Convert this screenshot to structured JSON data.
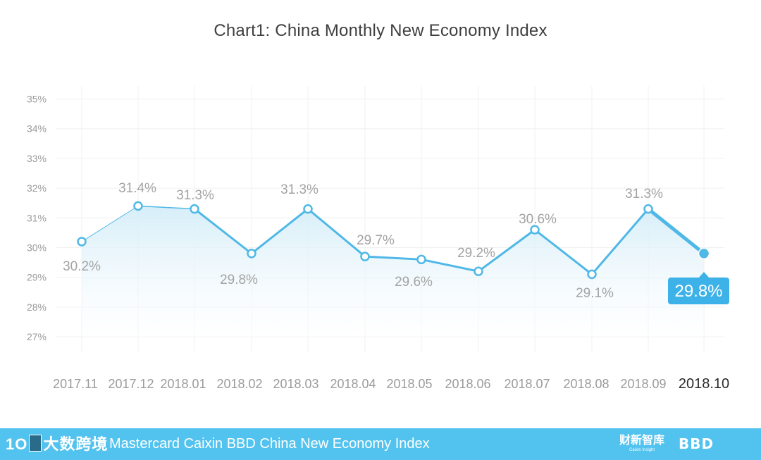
{
  "chart_data": {
    "type": "line",
    "title": "Chart1: China Monthly New Economy Index",
    "categories": [
      "2017.11",
      "2017.12",
      "2018.01",
      "2018.02",
      "2018.03",
      "2018.04",
      "2018.05",
      "2018.06",
      "2018.07",
      "2018.08",
      "2018.09",
      "2018.10"
    ],
    "values": [
      30.2,
      31.4,
      31.3,
      29.8,
      31.3,
      29.7,
      29.6,
      29.2,
      30.6,
      29.1,
      31.3,
      29.8
    ],
    "data_labels": [
      "30.2%",
      "31.4%",
      "31.3%",
      "29.8%",
      "31.3%",
      "29.7%",
      "29.6%",
      "29.2%",
      "30.6%",
      "29.1%",
      "31.3%",
      "29.8%"
    ],
    "y_ticks": [
      "27%",
      "28%",
      "29%",
      "30%",
      "31%",
      "32%",
      "33%",
      "34%",
      "35%"
    ],
    "ylim": [
      27,
      35
    ],
    "grid": true,
    "area_fill": true,
    "highlight_last": true,
    "colors": {
      "line": "#4fb8e6",
      "label_box": "#3db2e8",
      "grid": "#f0f0f0",
      "tick_text": "#9b9b9b",
      "label_text": "#a3a3a3"
    }
  },
  "footer": {
    "logo_left": "大数跨境",
    "logo_left_prefix": "1O",
    "title": "Mastercard Caixin BBD China New Economy Index",
    "logo_caixin": "财新智库",
    "logo_caixin_sub": "Caixin Insight",
    "logo_bbd": "BBD",
    "background": "#52c2ee"
  }
}
